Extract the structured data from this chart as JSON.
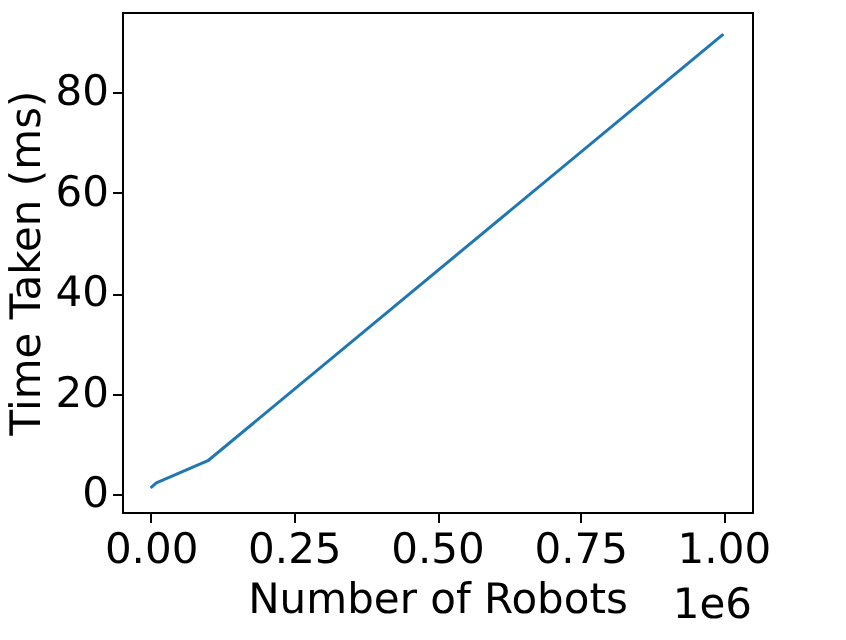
{
  "chart_data": {
    "type": "line",
    "xlabel": "Number of Robots",
    "ylabel": "Time Taken (ms)",
    "x": [
      0,
      0.01,
      0.1,
      1.0
    ],
    "series": [
      {
        "color": "#1f77b4",
        "values": [
          1.3,
          2.3,
          6.7,
          91.6
        ]
      }
    ],
    "xlim": [
      -0.05,
      1.05
    ],
    "ylim": [
      -3.5,
      96
    ],
    "xticks": [
      {
        "value": 0,
        "label": "0.00"
      },
      {
        "value": 0.25,
        "label": "0.25"
      },
      {
        "value": 0.5,
        "label": "0.50"
      },
      {
        "value": 0.75,
        "label": "0.75"
      },
      {
        "value": 1.0,
        "label": "1.00"
      }
    ],
    "yticks": [
      0,
      20,
      40,
      60,
      80
    ],
    "annotations": [
      "1e6"
    ],
    "grid": false,
    "marker": "none",
    "line_style": "solid"
  }
}
